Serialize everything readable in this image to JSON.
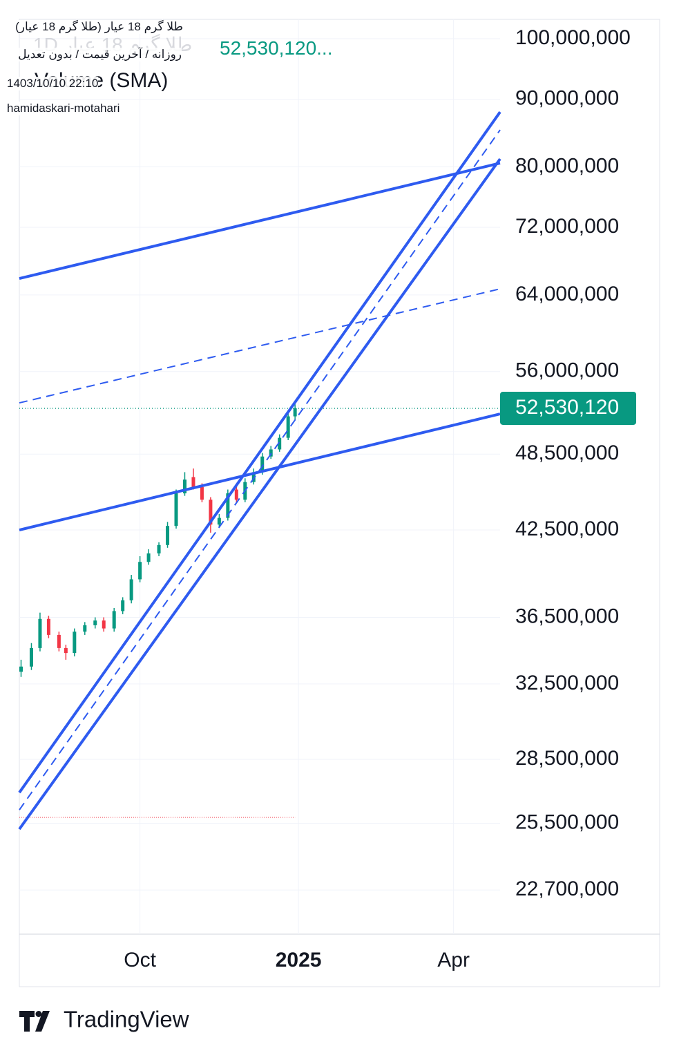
{
  "chart_data": {
    "type": "candlestick",
    "legend_title": "طلا گرم 18 عیار 1D",
    "legend_price": "52,530,120...",
    "volume_label": "Volume (SMA)",
    "x": [
      "2024-07-24",
      "2024-07-30",
      "2024-08-04",
      "2024-08-09",
      "2024-08-15",
      "2024-08-19",
      "2024-08-24",
      "2024-08-30",
      "2024-09-05",
      "2024-09-10",
      "2024-09-16",
      "2024-09-21",
      "2024-09-26",
      "2024-10-01",
      "2024-10-06",
      "2024-10-12",
      "2024-10-17",
      "2024-10-22",
      "2024-10-27",
      "2024-11-01",
      "2024-11-06",
      "2024-11-11",
      "2024-11-16",
      "2024-11-21",
      "2024-11-26",
      "2024-12-01",
      "2024-12-06",
      "2024-12-11",
      "2024-12-16",
      "2024-12-21",
      "2024-12-26",
      "2024-12-30"
    ],
    "open": [
      33200000,
      33500000,
      34600000,
      36400000,
      35400000,
      34600000,
      34300000,
      35600000,
      36000000,
      36300000,
      35800000,
      36900000,
      37600000,
      39000000,
      40200000,
      40800000,
      41400000,
      42800000,
      45300000,
      46600000,
      45800000,
      44800000,
      42900000,
      43400000,
      45600000,
      44800000,
      46200000,
      47000000,
      48300000,
      48900000,
      49900000,
      51800000
    ],
    "high": [
      33900000,
      34900000,
      36800000,
      36600000,
      35600000,
      34800000,
      35800000,
      36200000,
      36500000,
      36500000,
      37100000,
      37800000,
      39300000,
      40600000,
      41100000,
      41600000,
      43100000,
      45600000,
      47000000,
      47300000,
      46100000,
      45000000,
      43700000,
      45600000,
      46000000,
      46500000,
      47300000,
      48600000,
      49200000,
      50200000,
      52100000,
      52900000
    ],
    "low": [
      32900000,
      33300000,
      34400000,
      35200000,
      34400000,
      33900000,
      34100000,
      35400000,
      35800000,
      35600000,
      35600000,
      36700000,
      37400000,
      38800000,
      40000000,
      40600000,
      41200000,
      42600000,
      45100000,
      45600000,
      44600000,
      42300000,
      42700000,
      43200000,
      44600000,
      44600000,
      46000000,
      46800000,
      48100000,
      48700000,
      49700000,
      51500000
    ],
    "close": [
      33500000,
      34600000,
      36400000,
      35400000,
      34600000,
      34300000,
      35600000,
      36000000,
      36300000,
      35800000,
      36900000,
      37600000,
      39000000,
      40200000,
      40800000,
      41400000,
      42800000,
      45300000,
      46400000,
      45800000,
      44800000,
      42900000,
      43400000,
      45300000,
      44800000,
      46200000,
      47000000,
      48300000,
      48900000,
      49900000,
      51800000,
      52530120
    ],
    "last_label": "52,530,120",
    "up_color": "#089981",
    "down_color": "#f23645",
    "line_color": "#2e5bf0",
    "lines": [
      {
        "x": [
          "2024-07-23",
          "2025-04-28"
        ],
        "y": [
          65860000,
          80520000
        ],
        "dashed": false
      },
      {
        "x": [
          "2024-07-23",
          "2025-04-28"
        ],
        "y": [
          53030000,
          64680000
        ],
        "dashed": true
      },
      {
        "x": [
          "2024-07-23",
          "2025-04-28"
        ],
        "y": [
          42500000,
          52020000
        ],
        "dashed": false
      },
      {
        "x": [
          "2024-07-23",
          "2025-04-28"
        ],
        "y": [
          26900000,
          88020000
        ],
        "dashed": false
      },
      {
        "x": [
          "2024-07-23",
          "2025-04-28"
        ],
        "y": [
          26100000,
          85310000
        ],
        "dashed": true
      },
      {
        "x": [
          "2024-07-23",
          "2025-04-28"
        ],
        "y": [
          25240000,
          81110000
        ],
        "dashed": false
      }
    ],
    "range_low": 25760000,
    "log_scale": true,
    "grid": true,
    "xlim": [
      "2024-07-23",
      "2025-04-28"
    ],
    "xticks": [
      {
        "value": "2024-10-01",
        "label": "Oct"
      },
      {
        "value": "2025-01-01",
        "label": "2025"
      },
      {
        "value": "2025-04-01",
        "label": "Apr"
      }
    ],
    "ylim": [
      21020000,
      103430000
    ],
    "yticks": [
      {
        "value": 100000000,
        "label": "100,000,000"
      },
      {
        "value": 90000000,
        "label": "90,000,000"
      },
      {
        "value": 80000000,
        "label": "80,000,000"
      },
      {
        "value": 72000000,
        "label": "72,000,000"
      },
      {
        "value": 64000000,
        "label": "64,000,000"
      },
      {
        "value": 56000000,
        "label": "56,000,000"
      },
      {
        "value": 48500000,
        "label": "48,500,000"
      },
      {
        "value": 42500000,
        "label": "42,500,000"
      },
      {
        "value": 36500000,
        "label": "36,500,000"
      },
      {
        "value": 32500000,
        "label": "32,500,000"
      },
      {
        "value": 28500000,
        "label": "28,500,000"
      },
      {
        "value": 25500000,
        "label": "25,500,000"
      },
      {
        "value": 22700000,
        "label": "22,700,000"
      }
    ]
  },
  "header": {
    "title": "طلا گرم 18 عیار (طلا گرم 18 عیار)",
    "subtitle": "روزانه / آخرین قیمت / بدون تعدیل",
    "datetime": "1403/10/10 22:10",
    "author": "hamidaskari-motahari"
  },
  "brand": "TradingView"
}
